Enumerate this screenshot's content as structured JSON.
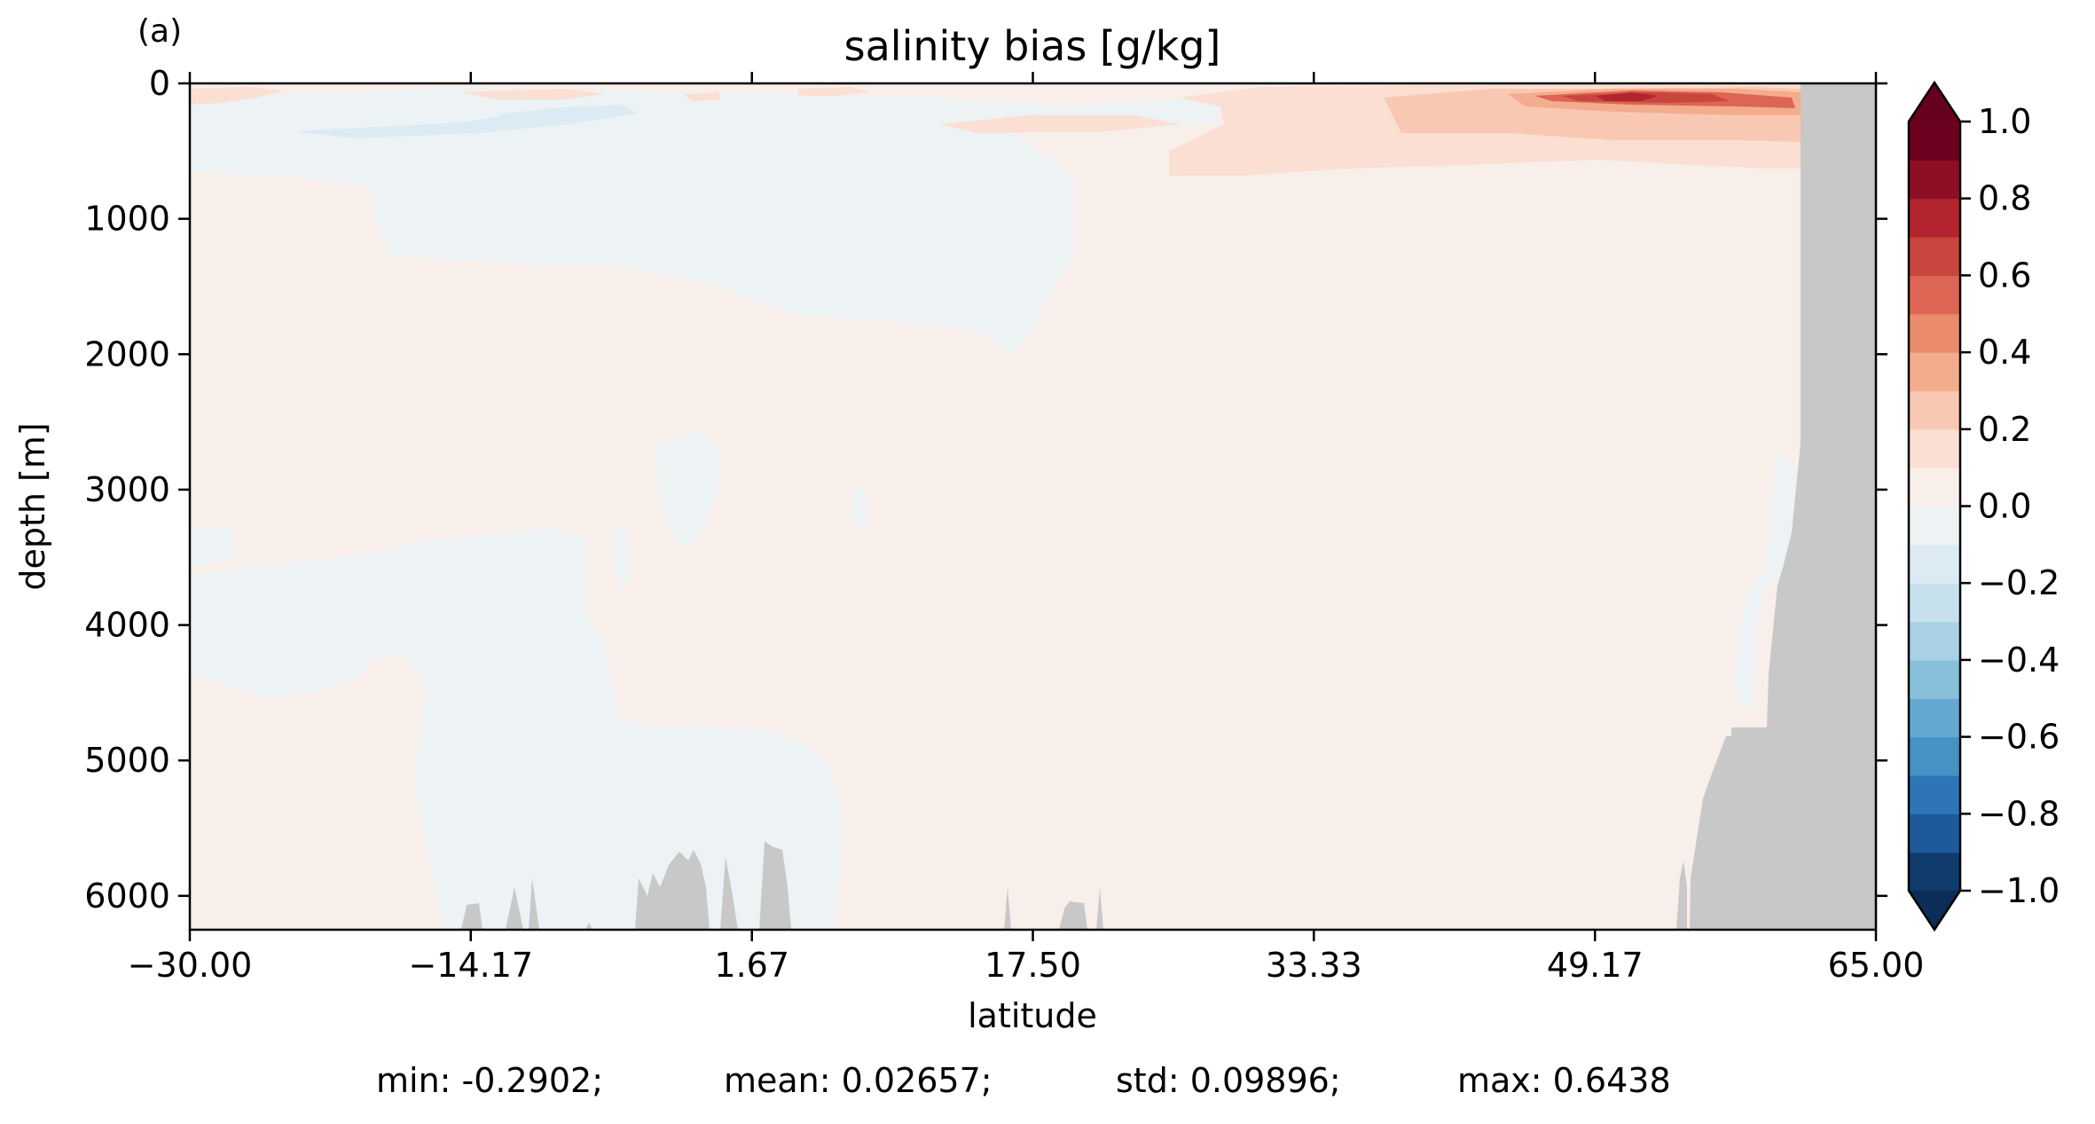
{
  "chart_data": {
    "type": "heatmap",
    "panel_label": "(a)",
    "title": "salinity bias [g/kg]",
    "xlabel": "latitude",
    "ylabel": "depth [m]",
    "xlim": [
      -30.0,
      65.0
    ],
    "ylim": [
      6250,
      0
    ],
    "x_ticks": [
      -30.0,
      -14.17,
      1.67,
      17.5,
      33.33,
      49.17,
      65.0
    ],
    "x_tick_labels": [
      "−30.00",
      "−14.17",
      "1.67",
      "17.50",
      "33.33",
      "49.17",
      "65.00"
    ],
    "y_ticks": [
      0,
      1000,
      2000,
      3000,
      4000,
      5000,
      6000
    ],
    "y_tick_labels": [
      "0",
      "1000",
      "2000",
      "3000",
      "4000",
      "5000",
      "6000"
    ],
    "colorbar": {
      "levels": [
        -1.0,
        -0.9,
        -0.8,
        -0.7,
        -0.6,
        -0.5,
        -0.4,
        -0.3,
        -0.2,
        -0.1,
        0.0,
        0.1,
        0.2,
        0.3,
        0.4,
        0.5,
        0.6,
        0.7,
        0.8,
        0.9,
        1.0
      ],
      "tick_values": [
        1.0,
        0.8,
        0.6,
        0.4,
        0.2,
        0.0,
        -0.2,
        -0.4,
        -0.6,
        -0.8,
        -1.0
      ],
      "tick_labels": [
        "1.0",
        "0.8",
        "0.6",
        "0.4",
        "0.2",
        "0.0",
        "−0.2",
        "−0.4",
        "−0.6",
        "−0.8",
        "−1.0"
      ],
      "colors": [
        "#0f3b6d",
        "#1c5a9c",
        "#2e75b5",
        "#4592c4",
        "#63a8d1",
        "#88c0dc",
        "#a9d1e6",
        "#c6e0ee",
        "#dcebf3",
        "#edf2f5",
        "#f8eeea",
        "#fbdfd2",
        "#f9c8b2",
        "#f4ac8e",
        "#ea8c6c",
        "#dc6553",
        "#c9463f",
        "#b2252f",
        "#8e0e26",
        "#6d0220"
      ],
      "extend": "both",
      "under_color": "#0a2e57",
      "over_color": "#67001f"
    },
    "land_color": "#c8c8c8",
    "stats": {
      "min": "min: -0.2902;",
      "mean": "mean: 0.02657;",
      "std": "std: 0.09896;",
      "max": "max: 0.6438"
    }
  }
}
